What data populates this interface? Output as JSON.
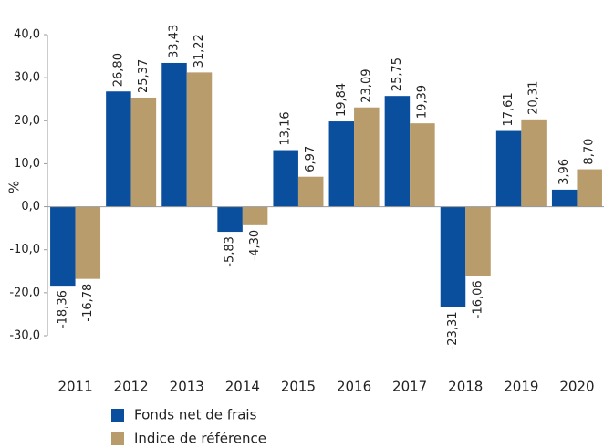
{
  "chart_data": {
    "type": "bar",
    "y_label": "%",
    "categories": [
      "2011",
      "2012",
      "2013",
      "2014",
      "2015",
      "2016",
      "2017",
      "2018",
      "2019",
      "2020"
    ],
    "series": [
      {
        "name": "Fonds net de frais",
        "color": "#0a4f9e",
        "values": [
          -18.36,
          26.8,
          33.43,
          -5.83,
          13.16,
          19.84,
          25.75,
          -23.31,
          17.61,
          3.96
        ],
        "value_labels": [
          "-18,36",
          "26,80",
          "33,43",
          "-5,83",
          "13,16",
          "19,84",
          "25,75",
          "-23,31",
          "17,61",
          "3,96"
        ]
      },
      {
        "name": "Indice de référence",
        "color": "#b99c6b",
        "values": [
          -16.78,
          25.37,
          31.22,
          -4.3,
          6.97,
          23.09,
          19.39,
          -16.06,
          20.31,
          8.7
        ],
        "value_labels": [
          "-16,78",
          "25,37",
          "31,22",
          "-4,30",
          "6,97",
          "23,09",
          "19,39",
          "-16,06",
          "20,31",
          "8,70"
        ]
      }
    ],
    "ylim": [
      -30,
      40
    ],
    "yticks": [
      {
        "value": -30,
        "label": "-30,0"
      },
      {
        "value": -20,
        "label": "-20,0"
      },
      {
        "value": -10,
        "label": "-10,0"
      },
      {
        "value": 0,
        "label": "0,0"
      },
      {
        "value": 10,
        "label": "10,0"
      },
      {
        "value": 20,
        "label": "20,0"
      },
      {
        "value": 30,
        "label": "30,0"
      },
      {
        "value": 40,
        "label": "40,0"
      }
    ],
    "grid": false,
    "legend": "bottom"
  }
}
